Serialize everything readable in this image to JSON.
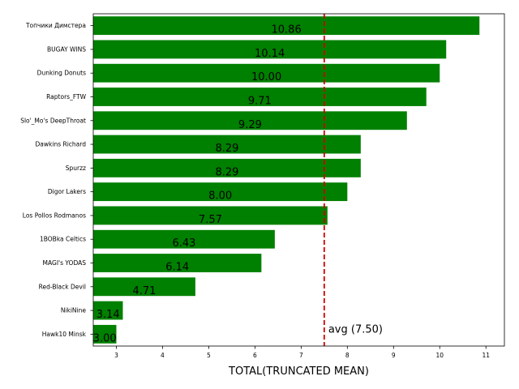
{
  "chart_data": {
    "type": "bar",
    "orientation": "horizontal",
    "categories": [
      "Топчики Димстера",
      "BUGAY WINS",
      "Dunking Donuts",
      "Raptors_FTW",
      "Slo'_Mo's DeepThroat",
      "Dawkins Richard",
      "Spurzz",
      "Digor Lakers",
      "Los Pollos Rodmanos",
      "1BOBka Celtics",
      "MAGI's YODAS",
      "Red-Black Devil",
      "NikiNine",
      "Hawk10 Minsk"
    ],
    "values": [
      10.86,
      10.14,
      10.0,
      9.71,
      9.29,
      8.29,
      8.29,
      8.0,
      7.57,
      6.43,
      6.14,
      4.71,
      3.14,
      3.0
    ],
    "value_labels": [
      "10.86",
      "10.14",
      "10.00",
      "9.71",
      "9.29",
      "8.29",
      "8.29",
      "8.00",
      "7.57",
      "6.43",
      "6.14",
      "4.71",
      "3.14",
      "3.00"
    ],
    "xlabel": "TOTAL(TRUNCATED MEAN)",
    "ylabel": "",
    "title": "",
    "xlim": [
      2.5,
      11.4
    ],
    "xticks": [
      3,
      4,
      5,
      6,
      7,
      8,
      9,
      10,
      11
    ],
    "average": {
      "value": 7.5,
      "label": "avg (7.50)"
    },
    "colors": {
      "bar": "#008000",
      "average_line": "#d00000",
      "text": "#000000",
      "axis": "#000000"
    },
    "grid": false,
    "legend": "none"
  }
}
